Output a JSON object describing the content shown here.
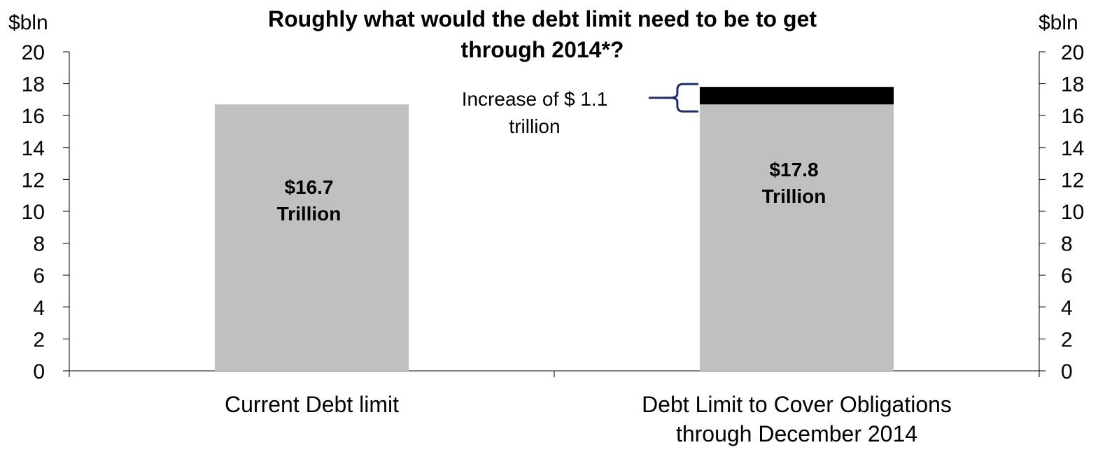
{
  "chart_data": {
    "type": "bar",
    "stacked": true,
    "title": "Roughly what would the debt limit need to be to get through 2014*?",
    "title_lines": [
      "Roughly what would the debt limit need to be to get",
      "through 2014*?"
    ],
    "ylabel_left": "$bln",
    "ylabel_right": "$bln",
    "ylim": [
      0,
      20
    ],
    "yticks": [
      0,
      2,
      4,
      6,
      8,
      10,
      12,
      14,
      16,
      18,
      20
    ],
    "grid": false,
    "categories": [
      [
        "Current Debt limit"
      ],
      [
        "Debt Limit to Cover Obligations",
        "through December 2014"
      ]
    ],
    "series": [
      {
        "values": [
          16.7,
          16.7
        ],
        "color": "#c0c0c0"
      },
      {
        "values": [
          0,
          1.1
        ],
        "color": "#000000"
      }
    ],
    "bar_labels": [
      [
        "$16.7",
        "Trillion"
      ],
      [
        "$17.8",
        "Trillion"
      ]
    ],
    "annotation": {
      "lines": [
        "Increase of $ 1.1",
        "trillion"
      ],
      "bracket_color": "#1f2d6b",
      "range": [
        16.7,
        17.8
      ]
    }
  }
}
